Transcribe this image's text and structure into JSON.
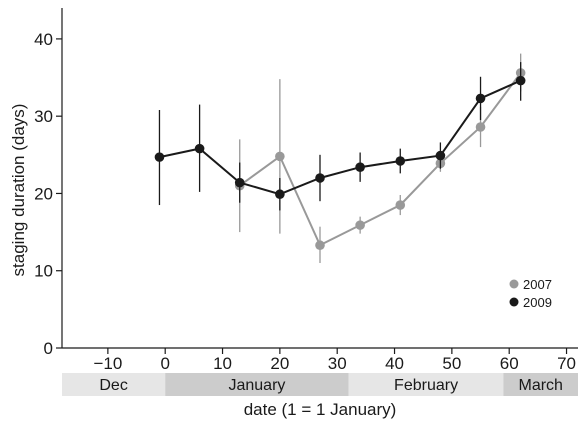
{
  "chart_data": {
    "type": "line",
    "xlabel": "date (1 = 1 January)",
    "ylabel": "staging duration (days)",
    "xlim": [
      -18,
      72
    ],
    "ylim": [
      0,
      44
    ],
    "xticks": [
      -10,
      0,
      10,
      20,
      30,
      40,
      50,
      60,
      70
    ],
    "yticks": [
      0,
      10,
      20,
      30,
      40
    ],
    "grid": false,
    "legend_position": "bottom-right",
    "months": [
      {
        "label": "Dec",
        "start": -18,
        "end": 0,
        "color": "#e6e6e6"
      },
      {
        "label": "January",
        "start": 0,
        "end": 32,
        "color": "#cccccc"
      },
      {
        "label": "February",
        "start": 32,
        "end": 59,
        "color": "#e6e6e6"
      },
      {
        "label": "March",
        "start": 59,
        "end": 72,
        "color": "#cccccc"
      }
    ],
    "series": [
      {
        "name": "2007",
        "color": "#999999",
        "points": [
          {
            "x": 13,
            "y": 21.0,
            "lo": 15.0,
            "hi": 27.0
          },
          {
            "x": 20,
            "y": 24.8,
            "lo": 14.8,
            "hi": 34.8
          },
          {
            "x": 27,
            "y": 13.3,
            "lo": 11.0,
            "hi": 15.7
          },
          {
            "x": 34,
            "y": 15.9,
            "lo": 14.8,
            "hi": 17.0
          },
          {
            "x": 41,
            "y": 18.5,
            "lo": 17.2,
            "hi": 19.8
          },
          {
            "x": 48,
            "y": 23.9,
            "lo": 22.8,
            "hi": 25.0
          },
          {
            "x": 55,
            "y": 28.6,
            "lo": 26.0,
            "hi": 31.2
          },
          {
            "x": 62,
            "y": 35.6,
            "lo": 33.2,
            "hi": 38.1
          }
        ]
      },
      {
        "name": "2009",
        "color": "#1a1a1a",
        "points": [
          {
            "x": -1,
            "y": 24.7,
            "lo": 18.5,
            "hi": 30.8
          },
          {
            "x": 6,
            "y": 25.8,
            "lo": 20.2,
            "hi": 31.5
          },
          {
            "x": 13,
            "y": 21.4,
            "lo": 18.8,
            "hi": 24.0
          },
          {
            "x": 20,
            "y": 19.9,
            "lo": 17.8,
            "hi": 22.0
          },
          {
            "x": 27,
            "y": 22.0,
            "lo": 19.0,
            "hi": 25.0
          },
          {
            "x": 34,
            "y": 23.4,
            "lo": 21.5,
            "hi": 25.3
          },
          {
            "x": 41,
            "y": 24.2,
            "lo": 22.6,
            "hi": 25.8
          },
          {
            "x": 48,
            "y": 24.9,
            "lo": 23.2,
            "hi": 26.6
          },
          {
            "x": 55,
            "y": 32.3,
            "lo": 29.5,
            "hi": 35.1
          },
          {
            "x": 62,
            "y": 34.6,
            "lo": 32.0,
            "hi": 37.0
          }
        ]
      }
    ]
  }
}
